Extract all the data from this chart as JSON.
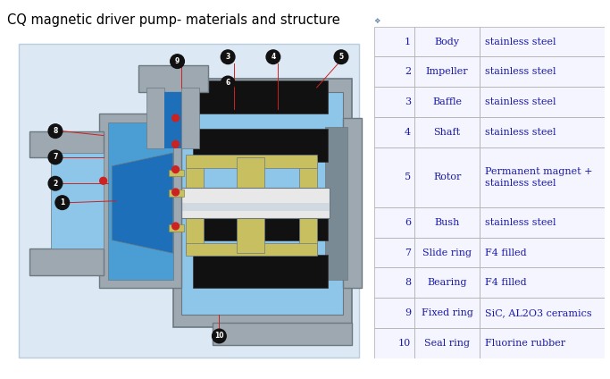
{
  "title": "CQ magnetic driver pump- materials and structure",
  "title_fontsize": 10.5,
  "title_color": "#000000",
  "rows": [
    [
      "1",
      "Body",
      "stainless steel"
    ],
    [
      "2",
      "Impeller",
      "stainless steel"
    ],
    [
      "3",
      "Baffle",
      "stainless steel"
    ],
    [
      "4",
      "Shaft",
      "stainless steel"
    ],
    [
      "5",
      "Rotor",
      "Permanent magnet +\nstainless steel"
    ],
    [
      "6",
      "Bush",
      "stainless steel"
    ],
    [
      "7",
      "Slide ring",
      "F4 filled"
    ],
    [
      "8",
      "Bearing",
      "F4 filled"
    ],
    [
      "9",
      "Fixed ring",
      "SiC, AL2O3 ceramics"
    ],
    [
      "10",
      "Seal ring",
      "Fluorine rubber"
    ]
  ],
  "text_color": "#1a1aaa",
  "border_color": "#aaaaaa",
  "cell_bg": "#f8f8ff",
  "font_size": 8.0,
  "bg_color": "#ffffff",
  "pump_bg": "#ddeeff",
  "pump_blue_deep": "#1e6fba",
  "pump_blue_mid": "#4a9ed4",
  "pump_blue_light": "#8dc6e8",
  "pump_gray": "#9da8b0",
  "pump_gray_dark": "#6b7880",
  "pump_gold": "#c8c060",
  "pump_black": "#111111",
  "pump_red": "#cc2222",
  "pump_white": "#e8e8e8",
  "label_color": "#111111",
  "label_bg": "#111111"
}
